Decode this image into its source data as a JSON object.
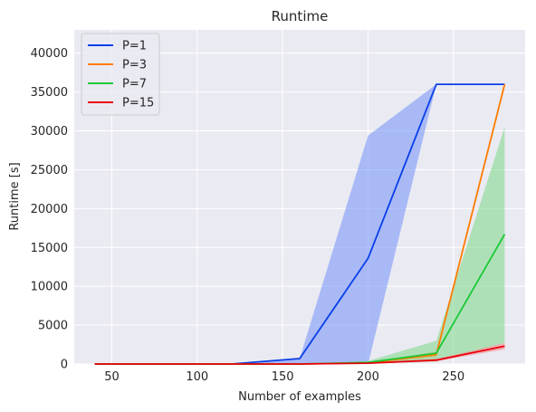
{
  "chart_data": {
    "type": "line",
    "title": "Runtime",
    "xlabel": "Number of examples",
    "ylabel": "Runtime [s]",
    "xlim": [
      28,
      292
    ],
    "ylim": [
      0,
      43000
    ],
    "xticks": [
      50,
      100,
      150,
      200,
      250
    ],
    "yticks": [
      0,
      5000,
      10000,
      15000,
      20000,
      25000,
      30000,
      35000,
      40000
    ],
    "grid": true,
    "legend_position": "top-left",
    "x": [
      40,
      80,
      120,
      160,
      200,
      240,
      280
    ],
    "series": [
      {
        "name": "P=1",
        "color": "#0a3fe8",
        "band_color": "#7b98f8",
        "values": [
          0,
          0,
          0,
          700,
          13600,
          36000,
          36000
        ],
        "lower": [
          0,
          0,
          0,
          0,
          0,
          36000,
          36000
        ],
        "upper": [
          0,
          0,
          0,
          700,
          29400,
          36000,
          36000
        ]
      },
      {
        "name": "P=3",
        "color": "#ff7c00",
        "band_color": "#ffb77a",
        "values": [
          0,
          0,
          0,
          0,
          150,
          1200,
          36000
        ],
        "lower": [
          0,
          0,
          0,
          0,
          100,
          800,
          35800
        ],
        "upper": [
          0,
          0,
          0,
          0,
          200,
          1600,
          36000
        ]
      },
      {
        "name": "P=7",
        "color": "#1ac938",
        "band_color": "#86d98f",
        "values": [
          0,
          0,
          0,
          0,
          200,
          1400,
          16700
        ],
        "lower": [
          0,
          0,
          0,
          0,
          50,
          300,
          2700
        ],
        "upper": [
          0,
          0,
          0,
          0,
          400,
          3000,
          30500
        ]
      },
      {
        "name": "P=15",
        "color": "#e8000b",
        "band_color": "#f58a8e",
        "values": [
          0,
          0,
          0,
          0,
          100,
          500,
          2300
        ],
        "lower": [
          0,
          0,
          0,
          0,
          50,
          350,
          1900
        ],
        "upper": [
          0,
          0,
          0,
          0,
          150,
          650,
          2700
        ]
      }
    ]
  }
}
